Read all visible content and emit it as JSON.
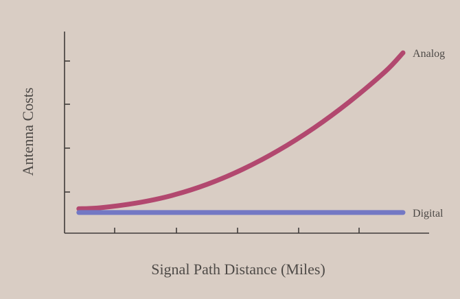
{
  "chart_data": {
    "type": "line",
    "title": "",
    "xlabel": "Signal Path Distance (Miles)",
    "ylabel": "Antenna Costs",
    "x_tick_count": 5,
    "y_tick_count": 4,
    "grid": false,
    "legend": "inline-right",
    "xlim": [
      0,
      10
    ],
    "ylim": [
      0,
      10
    ],
    "x": [
      0.4,
      1,
      2,
      3,
      4,
      5,
      6,
      7,
      8,
      9,
      9.5
    ],
    "series": [
      {
        "name": "Analog",
        "color": "#b2486f",
        "values": [
          1.3,
          1.35,
          1.6,
          2.0,
          2.6,
          3.4,
          4.4,
          5.6,
          7.0,
          8.6,
          9.6
        ]
      },
      {
        "name": "Digital",
        "color": "#7378c4",
        "values": [
          1.1,
          1.1,
          1.1,
          1.1,
          1.1,
          1.1,
          1.1,
          1.1,
          1.1,
          1.1,
          1.1
        ]
      }
    ]
  }
}
